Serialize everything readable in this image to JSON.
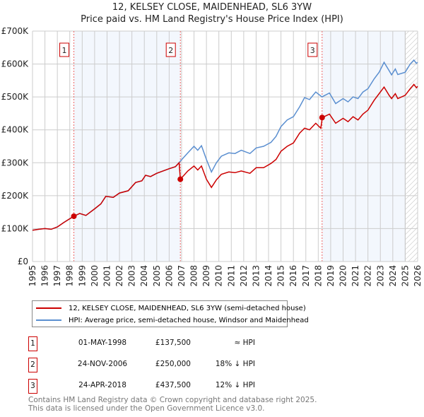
{
  "chart_data": {
    "type": "line",
    "title": "12, KELSEY CLOSE, MAIDENHEAD, SL6 3YW",
    "subtitle": "Price paid vs. HM Land Registry's House Price Index (HPI)",
    "xlim": [
      1995,
      2026
    ],
    "ylim": [
      0,
      700000
    ],
    "x_ticks": [
      "1995",
      "1996",
      "1997",
      "1998",
      "1999",
      "2000",
      "2001",
      "2002",
      "2003",
      "2004",
      "2005",
      "2006",
      "2007",
      "2008",
      "2009",
      "2010",
      "2011",
      "2012",
      "2013",
      "2014",
      "2015",
      "2016",
      "2017",
      "2018",
      "2019",
      "2020",
      "2021",
      "2022",
      "2023",
      "2024",
      "2025",
      "2026"
    ],
    "y_ticks": [
      {
        "v": 0,
        "label": "£0"
      },
      {
        "v": 100000,
        "label": "£100K"
      },
      {
        "v": 200000,
        "label": "£200K"
      },
      {
        "v": 300000,
        "label": "£300K"
      },
      {
        "v": 400000,
        "label": "£400K"
      },
      {
        "v": 500000,
        "label": "£500K"
      },
      {
        "v": 600000,
        "label": "£600K"
      },
      {
        "v": 700000,
        "label": "£700K"
      }
    ],
    "grid": true,
    "forecast_from": 2025.0,
    "series": [
      {
        "name": "12, KELSEY CLOSE, MAIDENHEAD, SL6 3YW (semi-detached house)",
        "color": "#cc0000",
        "points": [
          [
            1995,
            95
          ],
          [
            1995.5,
            98
          ],
          [
            1996,
            100
          ],
          [
            1996.5,
            98
          ],
          [
            1997,
            105
          ],
          [
            1997.5,
            118
          ],
          [
            1998,
            130
          ],
          [
            1998.33,
            137.5
          ],
          [
            1998.8,
            146
          ],
          [
            1999.3,
            140
          ],
          [
            2000,
            160
          ],
          [
            2000.5,
            175
          ],
          [
            2000.9,
            198
          ],
          [
            2001.5,
            195
          ],
          [
            2002,
            208
          ],
          [
            2002.7,
            215
          ],
          [
            2003.3,
            240
          ],
          [
            2003.8,
            245
          ],
          [
            2004.1,
            262
          ],
          [
            2004.5,
            258
          ],
          [
            2005,
            268
          ],
          [
            2005.5,
            275
          ],
          [
            2006,
            282
          ],
          [
            2006.5,
            288
          ],
          [
            2006.8,
            300
          ],
          [
            2006.9,
            250
          ],
          [
            2007.5,
            275
          ],
          [
            2008,
            290
          ],
          [
            2008.3,
            278
          ],
          [
            2008.6,
            290
          ],
          [
            2009,
            250
          ],
          [
            2009.4,
            225
          ],
          [
            2009.8,
            248
          ],
          [
            2010.2,
            265
          ],
          [
            2010.8,
            272
          ],
          [
            2011.3,
            270
          ],
          [
            2011.8,
            275
          ],
          [
            2012.5,
            268
          ],
          [
            2013,
            285
          ],
          [
            2013.6,
            285
          ],
          [
            2014.2,
            298
          ],
          [
            2014.6,
            310
          ],
          [
            2015,
            335
          ],
          [
            2015.5,
            350
          ],
          [
            2016,
            360
          ],
          [
            2016.5,
            390
          ],
          [
            2016.9,
            405
          ],
          [
            2017.3,
            400
          ],
          [
            2017.8,
            420
          ],
          [
            2018.2,
            405
          ],
          [
            2018.33,
            437.5
          ],
          [
            2018.9,
            448
          ],
          [
            2019.4,
            420
          ],
          [
            2020,
            435
          ],
          [
            2020.4,
            425
          ],
          [
            2020.8,
            440
          ],
          [
            2021.2,
            430
          ],
          [
            2021.6,
            448
          ],
          [
            2022,
            460
          ],
          [
            2022.5,
            490
          ],
          [
            2022.9,
            510
          ],
          [
            2023.3,
            530
          ],
          [
            2023.7,
            505
          ],
          [
            2023.9,
            495
          ],
          [
            2024.2,
            510
          ],
          [
            2024.4,
            495
          ],
          [
            2025,
            505
          ],
          [
            2025.4,
            525
          ],
          [
            2025.7,
            538
          ],
          [
            2025.9,
            528
          ],
          [
            2026,
            532
          ]
        ]
      },
      {
        "name": "HPI: Average price, semi-detached house, Windsor and Maidenhead",
        "color": "#5b8fd0",
        "points": [
          [
            1995,
            95
          ],
          [
            1995.5,
            98
          ],
          [
            1996,
            100
          ],
          [
            1996.5,
            98
          ],
          [
            1997,
            105
          ],
          [
            1997.5,
            118
          ],
          [
            1998,
            130
          ],
          [
            1998.33,
            137.5
          ],
          [
            1998.8,
            146
          ],
          [
            1999.3,
            140
          ],
          [
            2000,
            160
          ],
          [
            2000.5,
            175
          ],
          [
            2000.9,
            198
          ],
          [
            2001.5,
            195
          ],
          [
            2002,
            208
          ],
          [
            2002.7,
            215
          ],
          [
            2003.3,
            240
          ],
          [
            2003.8,
            245
          ],
          [
            2004.1,
            262
          ],
          [
            2004.5,
            258
          ],
          [
            2005,
            268
          ],
          [
            2005.5,
            275
          ],
          [
            2006,
            282
          ],
          [
            2006.5,
            288
          ],
          [
            2006.9,
            305
          ],
          [
            2007.5,
            330
          ],
          [
            2008,
            350
          ],
          [
            2008.3,
            338
          ],
          [
            2008.6,
            352
          ],
          [
            2009,
            310
          ],
          [
            2009.4,
            272
          ],
          [
            2009.8,
            300
          ],
          [
            2010.2,
            320
          ],
          [
            2010.8,
            330
          ],
          [
            2011.3,
            328
          ],
          [
            2011.8,
            338
          ],
          [
            2012.5,
            328
          ],
          [
            2013,
            345
          ],
          [
            2013.6,
            350
          ],
          [
            2014.2,
            362
          ],
          [
            2014.6,
            380
          ],
          [
            2015,
            410
          ],
          [
            2015.5,
            430
          ],
          [
            2016,
            440
          ],
          [
            2016.5,
            470
          ],
          [
            2016.9,
            498
          ],
          [
            2017.3,
            492
          ],
          [
            2017.8,
            515
          ],
          [
            2018.3,
            500
          ],
          [
            2018.9,
            512
          ],
          [
            2019.4,
            480
          ],
          [
            2020,
            495
          ],
          [
            2020.4,
            485
          ],
          [
            2020.8,
            500
          ],
          [
            2021.2,
            495
          ],
          [
            2021.6,
            515
          ],
          [
            2022,
            525
          ],
          [
            2022.5,
            555
          ],
          [
            2022.9,
            575
          ],
          [
            2023.3,
            605
          ],
          [
            2023.7,
            580
          ],
          [
            2023.9,
            567
          ],
          [
            2024.2,
            585
          ],
          [
            2024.4,
            568
          ],
          [
            2025,
            575
          ],
          [
            2025.4,
            600
          ],
          [
            2025.7,
            612
          ],
          [
            2025.9,
            602
          ],
          [
            2026,
            605
          ]
        ]
      }
    ],
    "sales": [
      {
        "num": "1",
        "x": 1998.33,
        "price": 137.5,
        "date": "01-MAY-1998",
        "price_label": "£137,500",
        "hpi": "≈ HPI"
      },
      {
        "num": "2",
        "x": 2006.9,
        "price": 250,
        "date": "24-NOV-2006",
        "price_label": "£250,000",
        "hpi": "18% ↓ HPI"
      },
      {
        "num": "3",
        "x": 2018.31,
        "price": 437.5,
        "date": "24-APR-2018",
        "price_label": "£437,500",
        "hpi": "12% ↓ HPI"
      }
    ]
  },
  "footer": {
    "line1": "Contains HM Land Registry data © Crown copyright and database right 2025.",
    "line2": "This data is licensed under the Open Government Licence v3.0."
  }
}
